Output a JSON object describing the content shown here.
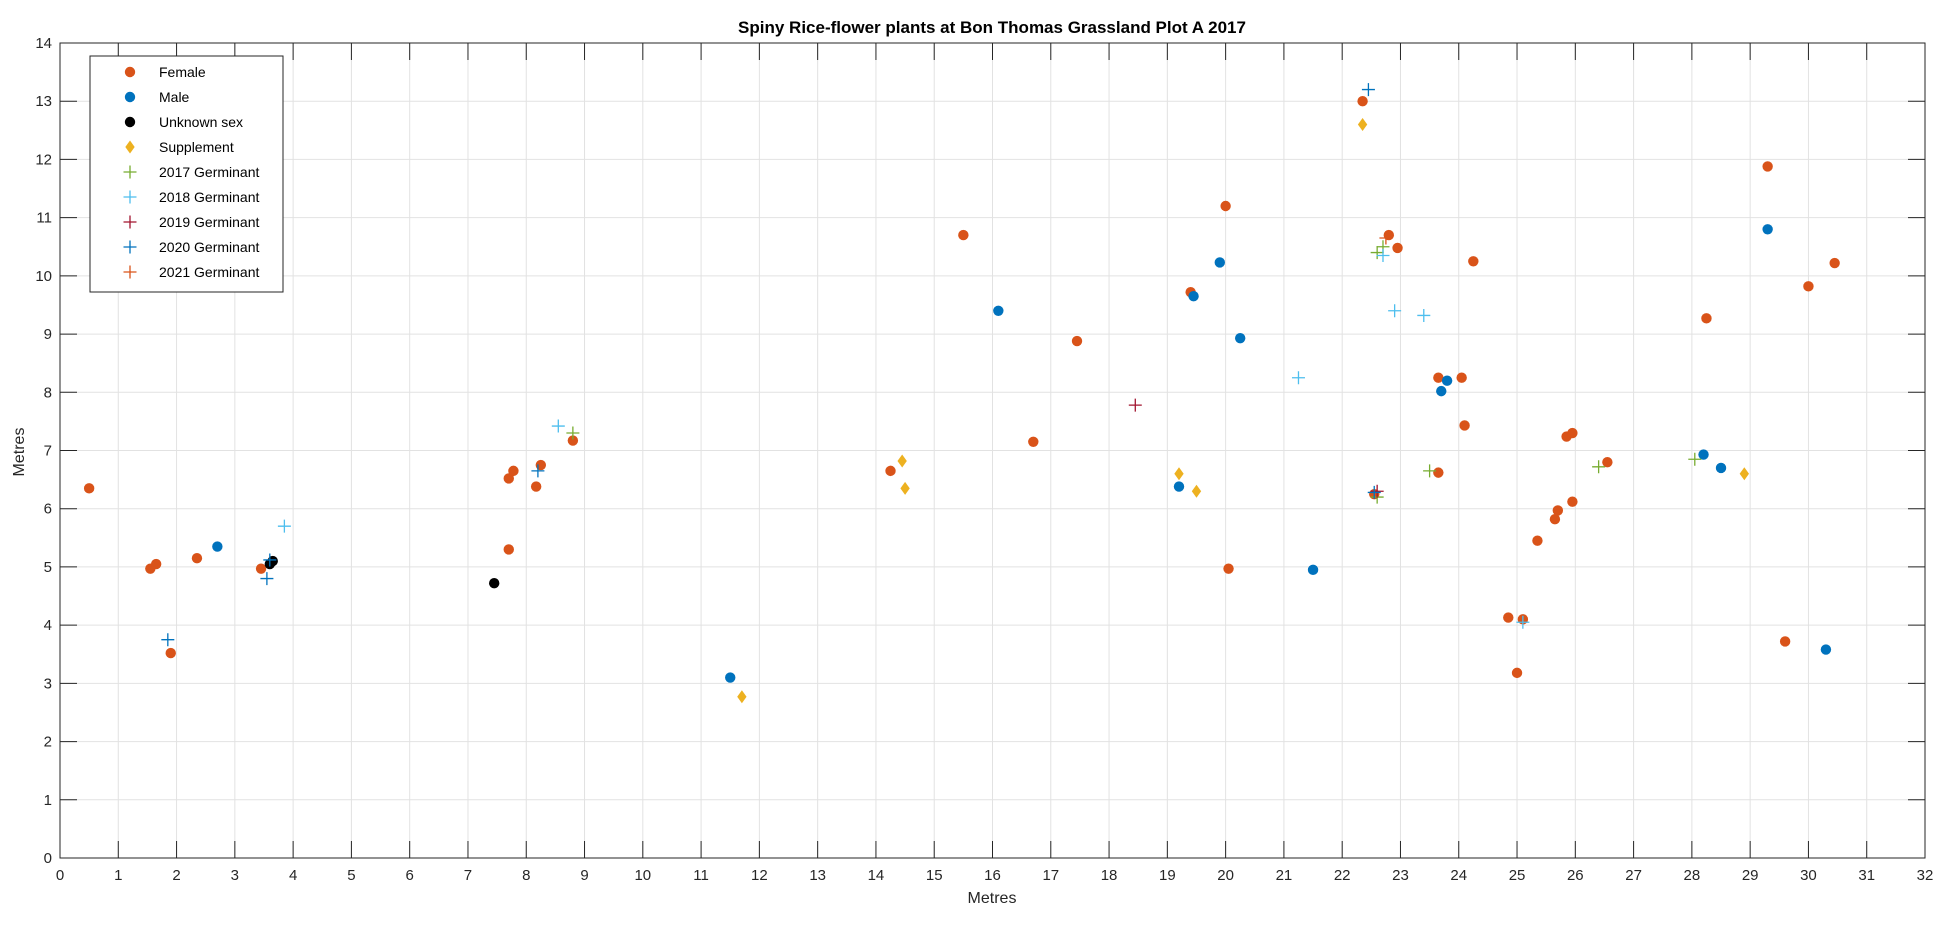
{
  "chart_data": {
    "type": "scatter",
    "title": "Spiny Rice-flower plants at Bon Thomas Grassland Plot A 2017",
    "xlabel": "Metres",
    "ylabel": "Metres",
    "xlim": [
      0,
      32
    ],
    "ylim": [
      0,
      14
    ],
    "xticks": [
      0,
      1,
      2,
      3,
      4,
      5,
      6,
      7,
      8,
      9,
      10,
      11,
      12,
      13,
      14,
      15,
      16,
      17,
      18,
      19,
      20,
      21,
      22,
      23,
      24,
      25,
      26,
      27,
      28,
      29,
      30,
      31,
      32
    ],
    "yticks": [
      0,
      1,
      2,
      3,
      4,
      5,
      6,
      7,
      8,
      9,
      10,
      11,
      12,
      13,
      14
    ],
    "grid": true,
    "legend_position": "top-left",
    "series": [
      {
        "name": "Female",
        "marker": "circle",
        "color": "#d95319",
        "points": [
          [
            0.5,
            6.35
          ],
          [
            1.55,
            4.97
          ],
          [
            1.65,
            5.05
          ],
          [
            1.9,
            3.52
          ],
          [
            2.35,
            5.15
          ],
          [
            3.45,
            4.97
          ],
          [
            7.7,
            5.3
          ],
          [
            7.7,
            6.52
          ],
          [
            7.78,
            6.65
          ],
          [
            8.17,
            6.38
          ],
          [
            8.25,
            6.75
          ],
          [
            8.8,
            7.17
          ],
          [
            14.25,
            6.65
          ],
          [
            15.5,
            10.7
          ],
          [
            16.7,
            7.15
          ],
          [
            17.45,
            8.88
          ],
          [
            19.4,
            9.72
          ],
          [
            20.0,
            11.2
          ],
          [
            20.05,
            4.97
          ],
          [
            22.35,
            13.0
          ],
          [
            22.55,
            6.25
          ],
          [
            22.8,
            10.7
          ],
          [
            22.95,
            10.48
          ],
          [
            23.65,
            6.62
          ],
          [
            23.65,
            8.25
          ],
          [
            24.05,
            8.25
          ],
          [
            24.1,
            7.43
          ],
          [
            24.25,
            10.25
          ],
          [
            24.85,
            4.13
          ],
          [
            25.0,
            3.18
          ],
          [
            25.1,
            4.1
          ],
          [
            25.35,
            5.45
          ],
          [
            25.65,
            5.82
          ],
          [
            25.7,
            5.97
          ],
          [
            25.85,
            7.24
          ],
          [
            25.95,
            7.3
          ],
          [
            25.95,
            6.12
          ],
          [
            26.55,
            6.8
          ],
          [
            29.3,
            11.88
          ],
          [
            29.6,
            3.72
          ],
          [
            30.0,
            9.82
          ],
          [
            30.45,
            10.22
          ],
          [
            28.25,
            9.27
          ]
        ]
      },
      {
        "name": "Male",
        "marker": "circle",
        "color": "#0072bd",
        "points": [
          [
            2.7,
            5.35
          ],
          [
            11.5,
            3.1
          ],
          [
            16.1,
            9.4
          ],
          [
            19.2,
            6.38
          ],
          [
            19.45,
            9.65
          ],
          [
            19.9,
            10.23
          ],
          [
            20.25,
            8.93
          ],
          [
            21.5,
            4.95
          ],
          [
            23.7,
            8.02
          ],
          [
            23.8,
            8.2
          ],
          [
            28.2,
            6.93
          ],
          [
            28.5,
            6.7
          ],
          [
            29.3,
            10.8
          ],
          [
            30.3,
            3.58
          ]
        ]
      },
      {
        "name": "Unknown sex",
        "marker": "circle",
        "color": "#000000",
        "points": [
          [
            7.45,
            4.72
          ],
          [
            3.6,
            5.05
          ],
          [
            3.65,
            5.1
          ]
        ]
      },
      {
        "name": "Supplement",
        "marker": "diamond",
        "color": "#edb120",
        "points": [
          [
            11.7,
            2.77
          ],
          [
            14.45,
            6.82
          ],
          [
            14.5,
            6.35
          ],
          [
            19.2,
            6.6
          ],
          [
            19.5,
            6.3
          ],
          [
            22.35,
            12.6
          ],
          [
            28.9,
            6.6
          ]
        ]
      },
      {
        "name": "2017 Germinant",
        "marker": "plus",
        "color": "#77ac30",
        "points": [
          [
            8.8,
            7.3
          ],
          [
            22.6,
            6.2
          ],
          [
            22.6,
            10.4
          ],
          [
            22.7,
            10.5
          ],
          [
            23.5,
            6.65
          ],
          [
            26.4,
            6.72
          ],
          [
            28.05,
            6.85
          ]
        ]
      },
      {
        "name": "2018 Germinant",
        "marker": "plus",
        "color": "#4dbeee",
        "points": [
          [
            3.85,
            5.7
          ],
          [
            8.55,
            7.42
          ],
          [
            21.25,
            8.25
          ],
          [
            22.7,
            10.35
          ],
          [
            22.9,
            9.4
          ],
          [
            23.4,
            9.32
          ],
          [
            25.1,
            4.05
          ]
        ]
      },
      {
        "name": "2019 Germinant",
        "marker": "plus",
        "color": "#a2142f",
        "points": [
          [
            18.45,
            7.78
          ],
          [
            22.6,
            6.3
          ]
        ]
      },
      {
        "name": "2020 Germinant",
        "marker": "plus",
        "color": "#0072bd",
        "points": [
          [
            1.85,
            3.75
          ],
          [
            3.55,
            4.8
          ],
          [
            3.6,
            5.12
          ],
          [
            8.2,
            6.65
          ],
          [
            22.45,
            13.2
          ],
          [
            22.55,
            6.28
          ]
        ]
      },
      {
        "name": "2021 Germinant",
        "marker": "plus",
        "color": "#d95319",
        "points": [
          [
            22.75,
            10.65
          ]
        ]
      }
    ]
  }
}
